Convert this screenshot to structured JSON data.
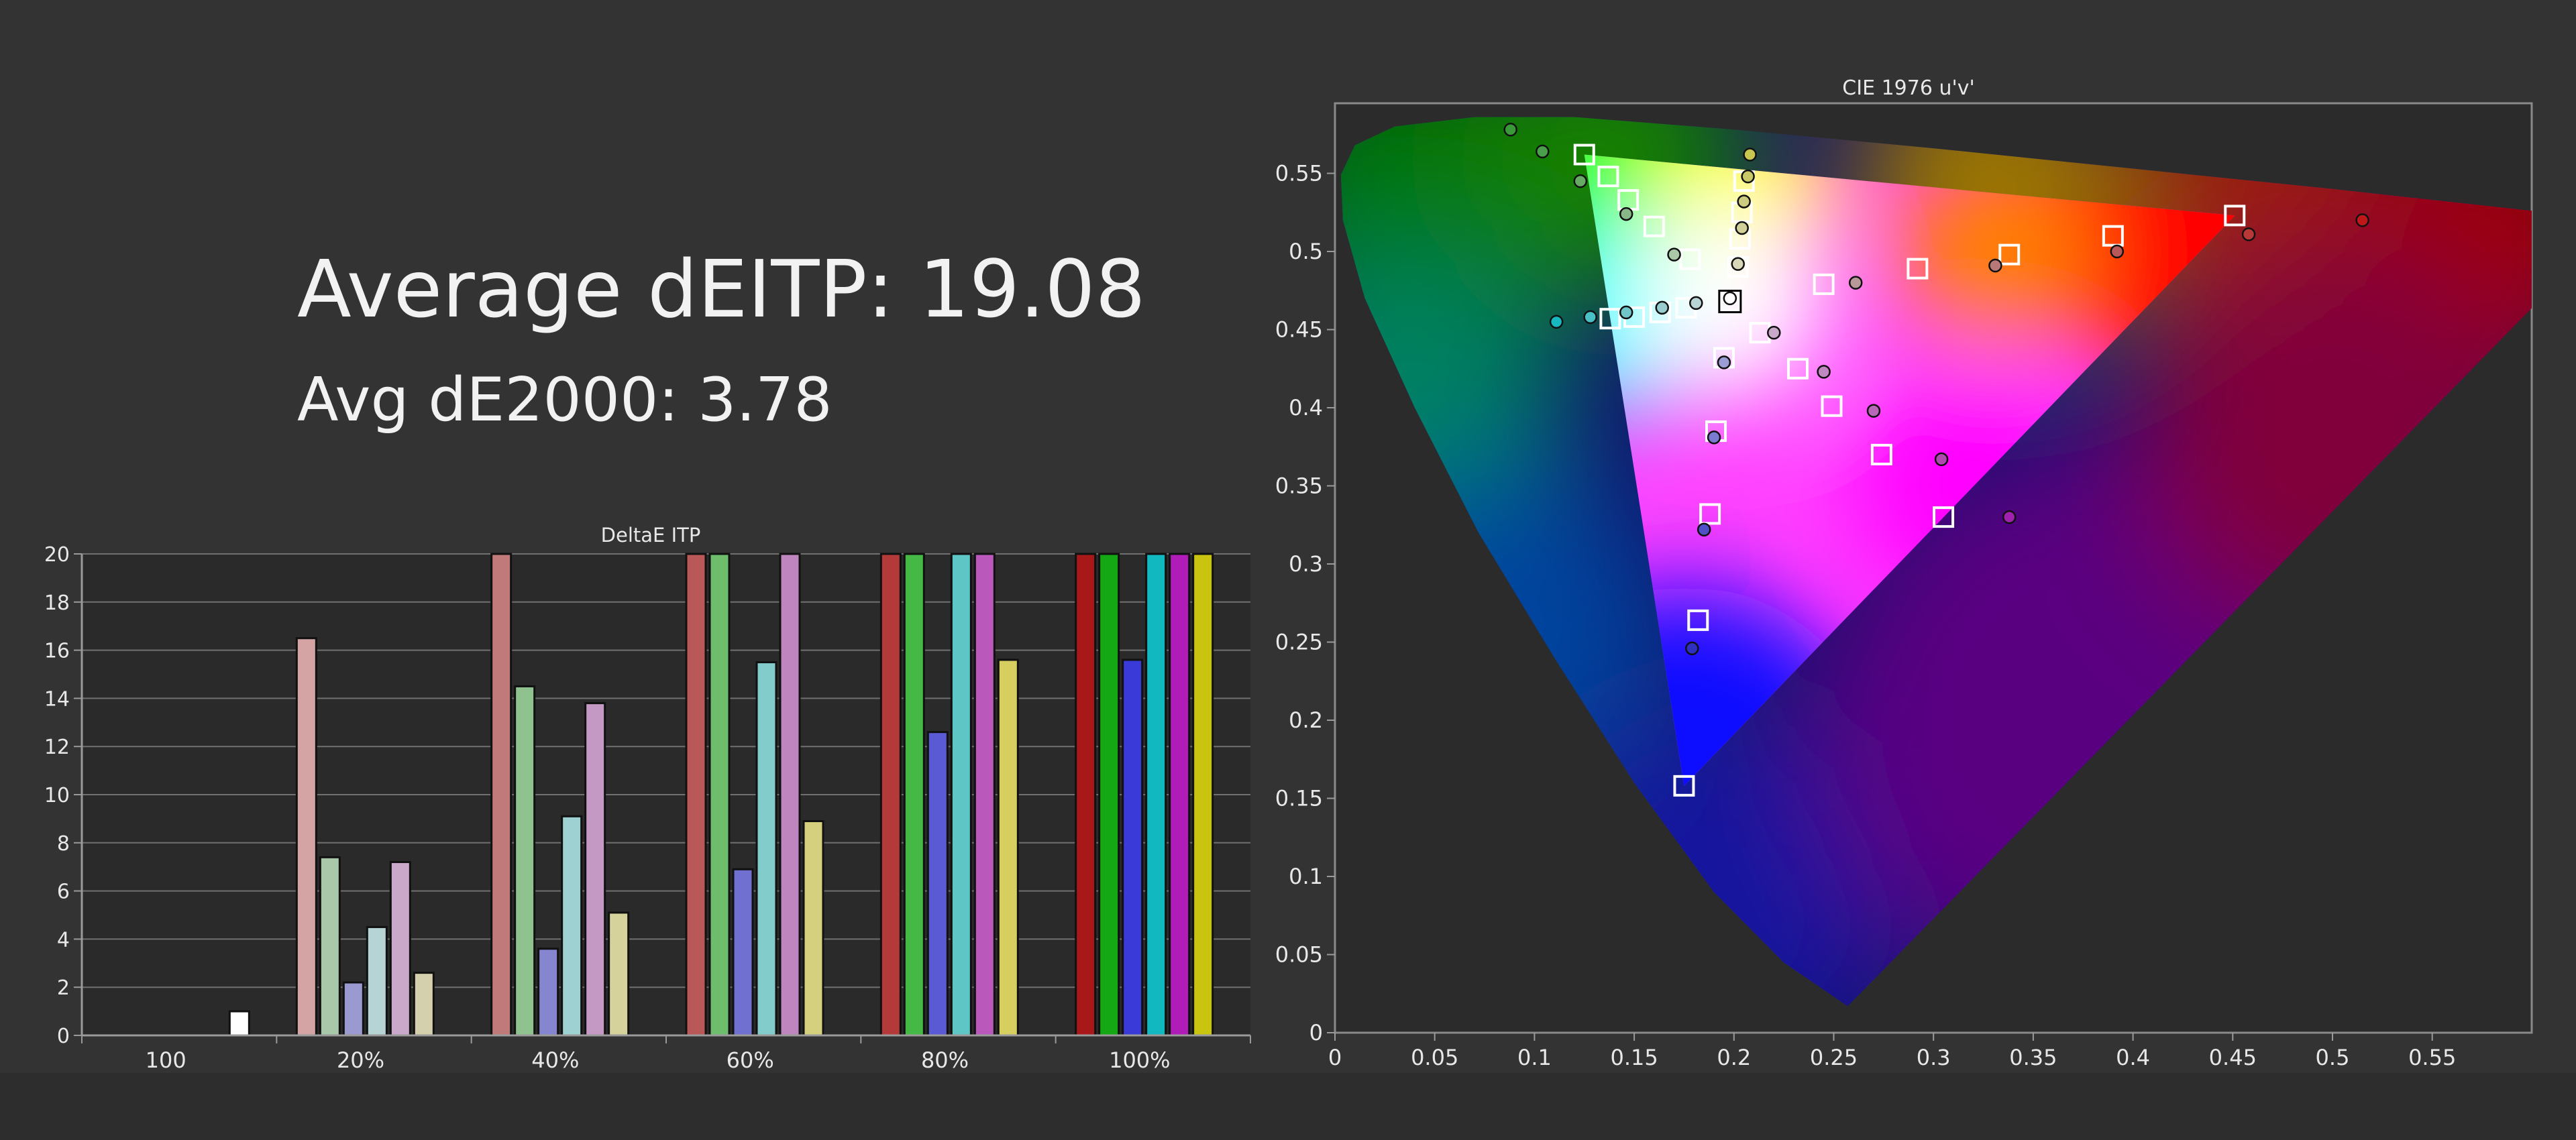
{
  "summary": {
    "avg_itp": "Average dEITP: 19.08",
    "avg_2000": "Avg dE2000: 3.78"
  },
  "chart_data": [
    {
      "type": "bar",
      "title": "DeltaE ITP",
      "ylim": [
        0,
        20
      ],
      "y_ticks": [
        "0",
        "2",
        "4",
        "6",
        "8",
        "10",
        "12",
        "14",
        "16",
        "18",
        "20"
      ],
      "groups": [
        {
          "label": "100",
          "bars": [
            {
              "color": "#ffffff",
              "value": 1.0
            }
          ]
        },
        {
          "label": "20%",
          "bars": [
            {
              "color": "#d4a3a3",
              "value": 16.5
            },
            {
              "color": "#a9c7a9",
              "value": 7.4
            },
            {
              "color": "#9a9ad0",
              "value": 2.2
            },
            {
              "color": "#b7d4d4",
              "value": 4.5
            },
            {
              "color": "#c9a8c9",
              "value": 7.2
            },
            {
              "color": "#d4d0ad",
              "value": 2.6
            }
          ]
        },
        {
          "label": "40%",
          "bars": [
            {
              "color": "#c07a7a",
              "value": 20
            },
            {
              "color": "#8fc28f",
              "value": 14.5
            },
            {
              "color": "#8585d0",
              "value": 3.6
            },
            {
              "color": "#9ed2d2",
              "value": 9.1
            },
            {
              "color": "#c49ac4",
              "value": 13.8
            },
            {
              "color": "#d6d29c",
              "value": 5.1
            }
          ]
        },
        {
          "label": "60%",
          "bars": [
            {
              "color": "#b85858",
              "value": 20
            },
            {
              "color": "#6dbd6d",
              "value": 20
            },
            {
              "color": "#7070d0",
              "value": 6.9
            },
            {
              "color": "#82cccc",
              "value": 15.5
            },
            {
              "color": "#bf85bf",
              "value": 20
            },
            {
              "color": "#d4d07e",
              "value": 8.9
            }
          ]
        },
        {
          "label": "80%",
          "bars": [
            {
              "color": "#b43a3a",
              "value": 20
            },
            {
              "color": "#45b845",
              "value": 20
            },
            {
              "color": "#5a5ad4",
              "value": 12.6
            },
            {
              "color": "#5fc6c6",
              "value": 20
            },
            {
              "color": "#bb58bb",
              "value": 20
            },
            {
              "color": "#d6cf60",
              "value": 15.6
            }
          ]
        },
        {
          "label": "100%",
          "bars": [
            {
              "color": "#a81818",
              "value": 20
            },
            {
              "color": "#14a814",
              "value": 20
            },
            {
              "color": "#3a3ad8",
              "value": 15.6
            },
            {
              "color": "#12b8c0",
              "value": 20
            },
            {
              "color": "#b01cb8",
              "value": 20
            },
            {
              "color": "#c8c410",
              "value": 20
            }
          ]
        }
      ]
    },
    {
      "type": "scatter",
      "title": "CIE 1976 u'v'",
      "xlim": [
        0,
        0.6
      ],
      "ylim": [
        0,
        0.6
      ],
      "x_ticks": [
        "0",
        "0.05",
        "0.1",
        "0.15",
        "0.2",
        "0.25",
        "0.3",
        "0.35",
        "0.4",
        "0.45",
        "0.5",
        "0.55"
      ],
      "y_ticks": [
        "0",
        "0.05",
        "0.1",
        "0.15",
        "0.2",
        "0.25",
        "0.3",
        "0.35",
        "0.4",
        "0.45",
        "0.5",
        "0.55"
      ],
      "gamut": {
        "red": [
          0.451,
          0.523
        ],
        "green": [
          0.125,
          0.562
        ],
        "blue": [
          0.175,
          0.158
        ],
        "white": [
          0.198,
          0.468
        ]
      },
      "targets": [
        [
          0.198,
          0.468
        ],
        [
          0.125,
          0.562
        ],
        [
          0.137,
          0.548
        ],
        [
          0.147,
          0.533
        ],
        [
          0.16,
          0.516
        ],
        [
          0.178,
          0.495
        ],
        [
          0.205,
          0.545
        ],
        [
          0.204,
          0.525
        ],
        [
          0.203,
          0.508
        ],
        [
          0.202,
          0.49
        ],
        [
          0.451,
          0.523
        ],
        [
          0.39,
          0.51
        ],
        [
          0.338,
          0.498
        ],
        [
          0.292,
          0.489
        ],
        [
          0.245,
          0.479
        ],
        [
          0.175,
          0.158
        ],
        [
          0.182,
          0.264
        ],
        [
          0.188,
          0.332
        ],
        [
          0.191,
          0.385
        ],
        [
          0.195,
          0.432
        ],
        [
          0.138,
          0.457
        ],
        [
          0.15,
          0.458
        ],
        [
          0.163,
          0.461
        ],
        [
          0.176,
          0.464
        ],
        [
          0.213,
          0.448
        ],
        [
          0.232,
          0.425
        ],
        [
          0.249,
          0.401
        ],
        [
          0.274,
          0.37
        ],
        [
          0.305,
          0.33
        ]
      ],
      "measured": [
        {
          "u": 0.198,
          "v": 0.47,
          "c": "#ffffff"
        },
        {
          "u": 0.088,
          "v": 0.578,
          "c": "#3a9a3a"
        },
        {
          "u": 0.104,
          "v": 0.564,
          "c": "#4aa04a"
        },
        {
          "u": 0.123,
          "v": 0.545,
          "c": "#66aa66"
        },
        {
          "u": 0.146,
          "v": 0.524,
          "c": "#88b888"
        },
        {
          "u": 0.17,
          "v": 0.498,
          "c": "#a8c8a8"
        },
        {
          "u": 0.208,
          "v": 0.562,
          "c": "#c8c850"
        },
        {
          "u": 0.207,
          "v": 0.548,
          "c": "#c8c868"
        },
        {
          "u": 0.205,
          "v": 0.532,
          "c": "#cccc80"
        },
        {
          "u": 0.204,
          "v": 0.515,
          "c": "#d0d098"
        },
        {
          "u": 0.202,
          "v": 0.492,
          "c": "#d8d8b8"
        },
        {
          "u": 0.515,
          "v": 0.52,
          "c": "#c01818"
        },
        {
          "u": 0.458,
          "v": 0.511,
          "c": "#b83838"
        },
        {
          "u": 0.392,
          "v": 0.5,
          "c": "#b85858"
        },
        {
          "u": 0.331,
          "v": 0.491,
          "c": "#b87878"
        },
        {
          "u": 0.261,
          "v": 0.48,
          "c": "#b89898"
        },
        {
          "u": 0.179,
          "v": 0.246,
          "c": "#3030c0"
        },
        {
          "u": 0.185,
          "v": 0.322,
          "c": "#5050c8"
        },
        {
          "u": 0.19,
          "v": 0.381,
          "c": "#7a7ad0"
        },
        {
          "u": 0.195,
          "v": 0.429,
          "c": "#9c9cd4"
        },
        {
          "u": 0.111,
          "v": 0.455,
          "c": "#18b8c0"
        },
        {
          "u": 0.128,
          "v": 0.458,
          "c": "#48c0c4"
        },
        {
          "u": 0.146,
          "v": 0.461,
          "c": "#70c6c8"
        },
        {
          "u": 0.164,
          "v": 0.464,
          "c": "#98ccce"
        },
        {
          "u": 0.181,
          "v": 0.467,
          "c": "#b8d4d4"
        },
        {
          "u": 0.22,
          "v": 0.448,
          "c": "#c8a8c8"
        },
        {
          "u": 0.245,
          "v": 0.423,
          "c": "#c088c0"
        },
        {
          "u": 0.27,
          "v": 0.398,
          "c": "#b868b8"
        },
        {
          "u": 0.304,
          "v": 0.367,
          "c": "#b048b0"
        },
        {
          "u": 0.338,
          "v": 0.33,
          "c": "#a020b0"
        }
      ]
    }
  ]
}
